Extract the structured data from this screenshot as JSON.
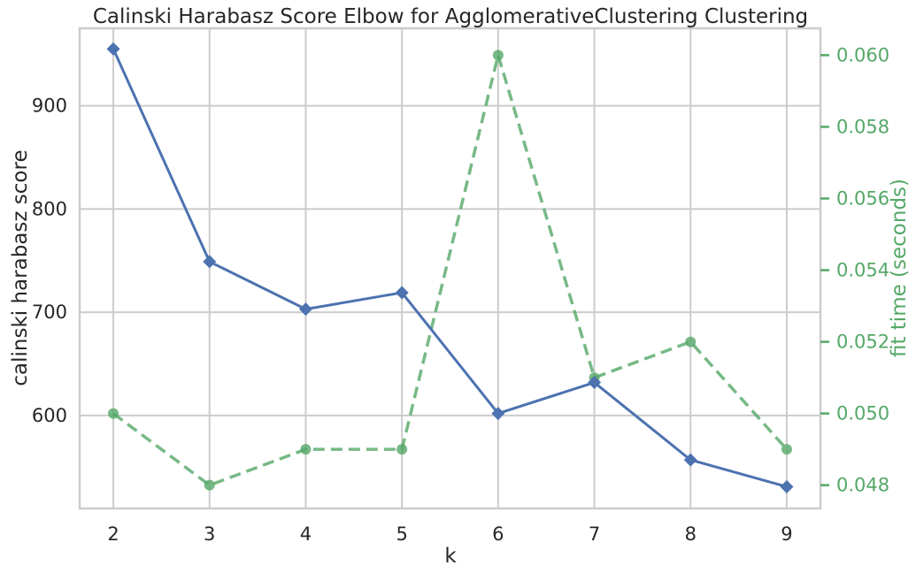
{
  "chart_data": {
    "type": "line",
    "title": "Calinski Harabasz Score Elbow for AgglomerativeClustering Clustering",
    "xlabel": "k",
    "ylabel": "calinski harabasz score",
    "y2label": "fit time (seconds)",
    "x": [
      2,
      3,
      4,
      5,
      6,
      7,
      8,
      9
    ],
    "xlim": [
      1.65,
      9.35
    ],
    "ylim": [
      510,
      975
    ],
    "y2lim": [
      0.04735,
      0.06075
    ],
    "yticks": [
      600,
      700,
      800,
      900
    ],
    "y2ticks": [
      0.048,
      0.05,
      0.052,
      0.054,
      0.056,
      0.058,
      0.06
    ],
    "xtick_labels": [
      "2",
      "3",
      "4",
      "5",
      "6",
      "7",
      "8",
      "9"
    ],
    "ytick_labels": [
      "600",
      "700",
      "800",
      "900"
    ],
    "y2tick_labels": [
      "0.048",
      "0.050",
      "0.052",
      "0.054",
      "0.056",
      "0.058",
      "0.060"
    ],
    "grid": true,
    "series": [
      {
        "axis": "left",
        "color": "#4c72b0",
        "marker": "diamond",
        "linestyle": "solid",
        "values": [
          955,
          749,
          703,
          719,
          602,
          632,
          557,
          531
        ]
      },
      {
        "axis": "right",
        "color": "#55a868",
        "marker": "circle",
        "linestyle": "dashed",
        "values": [
          0.05,
          0.048,
          0.049,
          0.049,
          0.06,
          0.051,
          0.052,
          0.049
        ]
      }
    ]
  }
}
